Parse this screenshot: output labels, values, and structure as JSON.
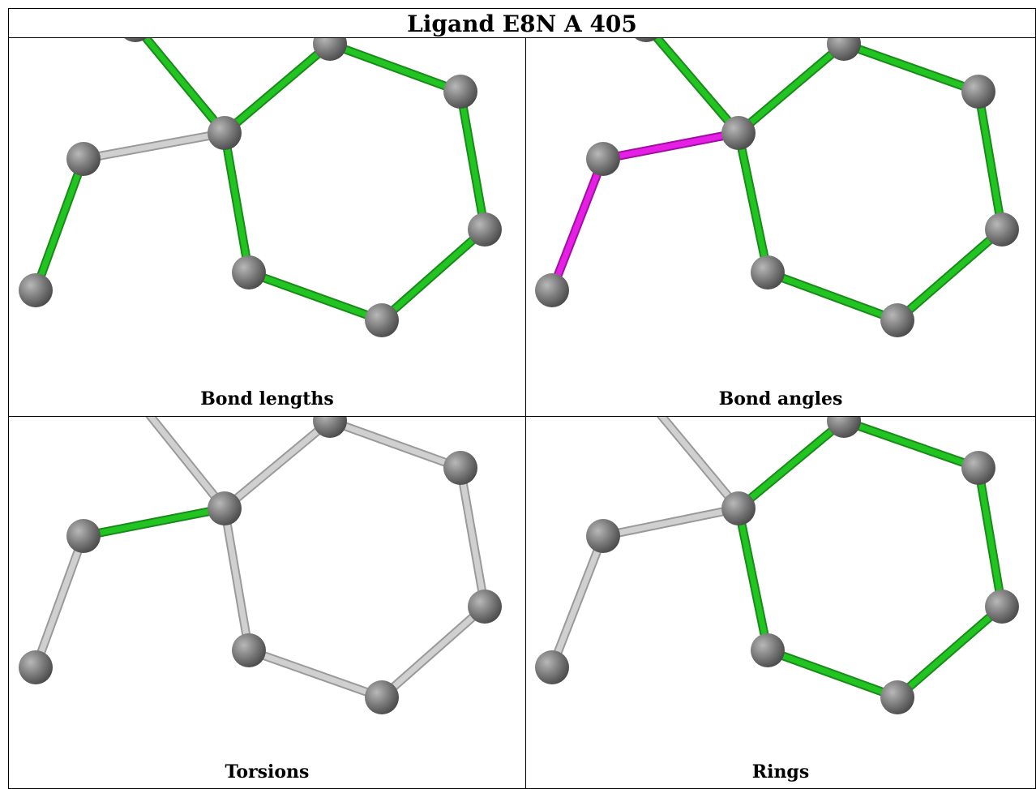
{
  "title": "Ligand E8N A 405",
  "colors": {
    "outlier": "#22c422",
    "angle_outlier": "#e61ee6",
    "normal": "#d0d0d0",
    "atom": "#7a7a7a"
  },
  "panels": [
    {
      "caption": "Bond lengths",
      "bond_colors": [
        "green",
        "green",
        "green",
        "green",
        "green",
        "green",
        "green",
        "grey",
        "green"
      ]
    },
    {
      "caption": "Bond angles",
      "bond_colors": [
        "green",
        "green",
        "green",
        "green",
        "green",
        "green",
        "green",
        "magenta",
        "magenta"
      ]
    },
    {
      "caption": "Torsions",
      "bond_colors": [
        "grey",
        "grey",
        "grey",
        "grey",
        "grey",
        "grey",
        "grey",
        "green",
        "grey"
      ]
    },
    {
      "caption": "Rings",
      "bond_colors": [
        "grey",
        "green",
        "green",
        "green",
        "green",
        "green",
        "green",
        "grey",
        "grey"
      ]
    }
  ]
}
